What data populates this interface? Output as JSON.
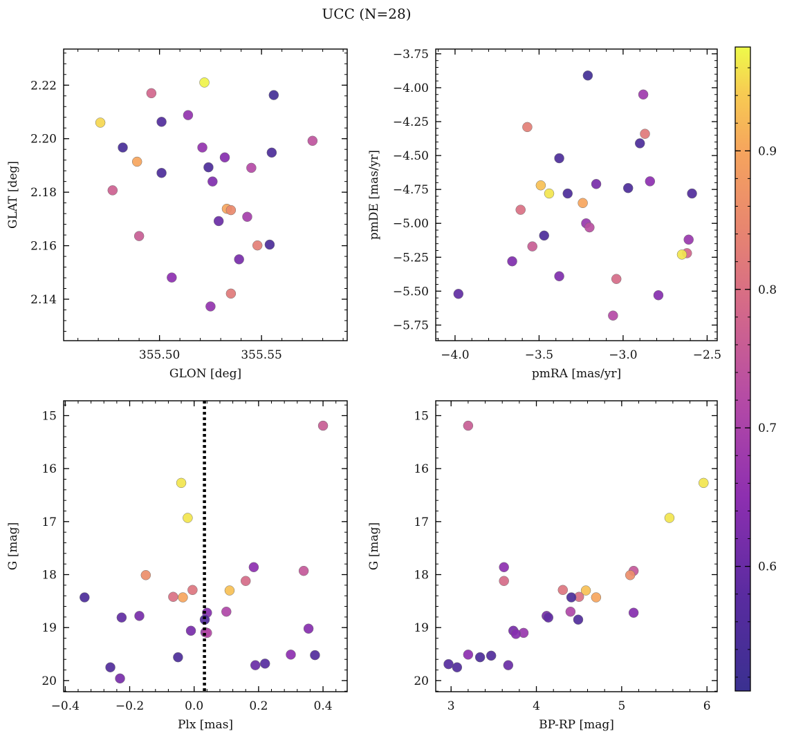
{
  "figure": {
    "title": "UCC (N=28)"
  },
  "colorbar": {
    "range": [
      0.51,
      0.975
    ],
    "ticks": [
      0.6,
      0.7,
      0.8,
      0.9
    ],
    "tick_labels": [
      "0.6",
      "0.7",
      "0.8",
      "0.9"
    ],
    "colormap": "plasma"
  },
  "chart_data": [
    {
      "type": "scatter",
      "name": "sky",
      "xlabel": "GLON [deg]",
      "ylabel": "GLAT [deg]",
      "xlim": [
        355.453,
        355.592
      ],
      "ylim": [
        2.1245,
        2.2335
      ],
      "xticks": [
        355.5,
        355.55
      ],
      "xtick_labels": [
        "355.50",
        "355.55"
      ],
      "yticks": [
        2.14,
        2.16,
        2.18,
        2.2,
        2.22
      ],
      "ytick_labels": [
        "2.14",
        "2.16",
        "2.18",
        "2.20",
        "2.22"
      ],
      "y_inverted": false,
      "points": [
        {
          "x": 355.556,
          "y": 2.2163,
          "c": 0.53
        },
        {
          "x": 355.522,
          "y": 2.221,
          "c": 0.97
        },
        {
          "x": 355.496,
          "y": 2.217,
          "c": 0.78
        },
        {
          "x": 355.471,
          "y": 2.206,
          "c": 0.95
        },
        {
          "x": 355.501,
          "y": 2.2063,
          "c": 0.56
        },
        {
          "x": 355.514,
          "y": 2.2088,
          "c": 0.66
        },
        {
          "x": 355.575,
          "y": 2.1992,
          "c": 0.74
        },
        {
          "x": 355.482,
          "y": 2.1967,
          "c": 0.54
        },
        {
          "x": 355.521,
          "y": 2.1967,
          "c": 0.66
        },
        {
          "x": 355.555,
          "y": 2.1948,
          "c": 0.55
        },
        {
          "x": 355.489,
          "y": 2.1914,
          "c": 0.9
        },
        {
          "x": 355.532,
          "y": 2.193,
          "c": 0.64
        },
        {
          "x": 355.524,
          "y": 2.1893,
          "c": 0.55
        },
        {
          "x": 355.545,
          "y": 2.1891,
          "c": 0.72
        },
        {
          "x": 355.501,
          "y": 2.1872,
          "c": 0.55
        },
        {
          "x": 355.526,
          "y": 2.184,
          "c": 0.63
        },
        {
          "x": 355.477,
          "y": 2.1807,
          "c": 0.77
        },
        {
          "x": 355.533,
          "y": 2.1738,
          "c": 0.9
        },
        {
          "x": 355.535,
          "y": 2.1733,
          "c": 0.85
        },
        {
          "x": 355.543,
          "y": 2.1708,
          "c": 0.69
        },
        {
          "x": 355.529,
          "y": 2.1692,
          "c": 0.6
        },
        {
          "x": 355.49,
          "y": 2.1636,
          "c": 0.76
        },
        {
          "x": 355.548,
          "y": 2.1601,
          "c": 0.83
        },
        {
          "x": 355.554,
          "y": 2.1604,
          "c": 0.55
        },
        {
          "x": 355.539,
          "y": 2.1549,
          "c": 0.62
        },
        {
          "x": 355.506,
          "y": 2.1481,
          "c": 0.65
        },
        {
          "x": 355.535,
          "y": 2.1421,
          "c": 0.82
        },
        {
          "x": 355.525,
          "y": 2.1373,
          "c": 0.66
        }
      ]
    },
    {
      "type": "scatter",
      "name": "proper-motion",
      "xlabel": "pmRA [mas/yr]",
      "ylabel": "pmDE [mas/yr]",
      "xlim": [
        -4.115,
        -2.44
      ],
      "ylim": [
        -5.865,
        -3.715
      ],
      "xticks": [
        -4.0,
        -3.5,
        -3.0,
        -2.5
      ],
      "xtick_labels": [
        "−4.0",
        "−3.5",
        "−3.0",
        "−2.5"
      ],
      "yticks": [
        -5.75,
        -5.5,
        -5.25,
        -5.0,
        -4.75,
        -4.5,
        -4.25,
        -4.0,
        -3.75
      ],
      "ytick_labels": [
        "−5.75",
        "−5.50",
        "−5.25",
        "−5.00",
        "−4.75",
        "−4.50",
        "−4.25",
        "−4.00",
        "−3.75"
      ],
      "y_inverted": false,
      "points": [
        {
          "x": -3.21,
          "y": -3.91,
          "c": 0.53
        },
        {
          "x": -2.88,
          "y": -4.05,
          "c": 0.68
        },
        {
          "x": -3.57,
          "y": -4.29,
          "c": 0.83
        },
        {
          "x": -2.87,
          "y": -4.34,
          "c": 0.82
        },
        {
          "x": -2.9,
          "y": -4.41,
          "c": 0.55
        },
        {
          "x": -3.38,
          "y": -4.52,
          "c": 0.55
        },
        {
          "x": -3.16,
          "y": -4.71,
          "c": 0.62
        },
        {
          "x": -2.84,
          "y": -4.69,
          "c": 0.65
        },
        {
          "x": -3.49,
          "y": -4.72,
          "c": 0.93
        },
        {
          "x": -3.44,
          "y": -4.78,
          "c": 0.96
        },
        {
          "x": -3.33,
          "y": -4.78,
          "c": 0.55
        },
        {
          "x": -2.97,
          "y": -4.74,
          "c": 0.55
        },
        {
          "x": -2.59,
          "y": -4.78,
          "c": 0.56
        },
        {
          "x": -3.24,
          "y": -4.85,
          "c": 0.9
        },
        {
          "x": -3.61,
          "y": -4.9,
          "c": 0.8
        },
        {
          "x": -3.22,
          "y": -5.0,
          "c": 0.67
        },
        {
          "x": -3.2,
          "y": -5.03,
          "c": 0.73
        },
        {
          "x": -3.47,
          "y": -5.09,
          "c": 0.55
        },
        {
          "x": -3.54,
          "y": -5.17,
          "c": 0.76
        },
        {
          "x": -2.61,
          "y": -5.12,
          "c": 0.67
        },
        {
          "x": -2.62,
          "y": -5.22,
          "c": 0.78
        },
        {
          "x": -2.65,
          "y": -5.23,
          "c": 0.96
        },
        {
          "x": -3.66,
          "y": -5.28,
          "c": 0.63
        },
        {
          "x": -3.38,
          "y": -5.39,
          "c": 0.63
        },
        {
          "x": -3.04,
          "y": -5.41,
          "c": 0.79
        },
        {
          "x": -3.98,
          "y": -5.52,
          "c": 0.59
        },
        {
          "x": -2.79,
          "y": -5.53,
          "c": 0.64
        },
        {
          "x": -3.06,
          "y": -5.68,
          "c": 0.72
        }
      ]
    },
    {
      "type": "scatter",
      "name": "plx-mag",
      "xlabel": "Plx [mas]",
      "ylabel": "G [mag]",
      "xlim": [
        -0.405,
        0.475
      ],
      "ylim": [
        14.72,
        20.21
      ],
      "xticks": [
        -0.4,
        -0.2,
        0.0,
        0.2,
        0.4
      ],
      "xtick_labels": [
        "−0.4",
        "−0.2",
        "0.0",
        "0.2",
        "0.4"
      ],
      "yticks": [
        15,
        16,
        17,
        18,
        19,
        20
      ],
      "ytick_labels": [
        "15",
        "16",
        "17",
        "18",
        "19",
        "20"
      ],
      "y_inverted": true,
      "vline": {
        "x": 0.032,
        "style": "dotted"
      },
      "points": [
        {
          "x": 0.4,
          "y": 15.19,
          "c": 0.76
        },
        {
          "x": -0.04,
          "y": 16.27,
          "c": 0.96
        },
        {
          "x": -0.02,
          "y": 16.93,
          "c": 0.96
        },
        {
          "x": 0.185,
          "y": 17.86,
          "c": 0.65
        },
        {
          "x": 0.34,
          "y": 17.93,
          "c": 0.75
        },
        {
          "x": -0.15,
          "y": 18.01,
          "c": 0.86
        },
        {
          "x": 0.16,
          "y": 18.12,
          "c": 0.79
        },
        {
          "x": -0.005,
          "y": 18.29,
          "c": 0.81
        },
        {
          "x": 0.11,
          "y": 18.3,
          "c": 0.93
        },
        {
          "x": -0.065,
          "y": 18.42,
          "c": 0.8
        },
        {
          "x": -0.035,
          "y": 18.43,
          "c": 0.9
        },
        {
          "x": -0.34,
          "y": 18.43,
          "c": 0.55
        },
        {
          "x": 0.1,
          "y": 18.7,
          "c": 0.71
        },
        {
          "x": 0.04,
          "y": 18.72,
          "c": 0.64
        },
        {
          "x": -0.17,
          "y": 18.78,
          "c": 0.62
        },
        {
          "x": -0.225,
          "y": 18.81,
          "c": 0.59
        },
        {
          "x": 0.033,
          "y": 18.85,
          "c": 0.56
        },
        {
          "x": 0.355,
          "y": 19.02,
          "c": 0.64
        },
        {
          "x": -0.01,
          "y": 19.06,
          "c": 0.62
        },
        {
          "x": 0.035,
          "y": 19.09,
          "c": 0.67
        },
        {
          "x": 0.04,
          "y": 19.1,
          "c": 0.72
        },
        {
          "x": 0.3,
          "y": 19.51,
          "c": 0.65
        },
        {
          "x": 0.375,
          "y": 19.52,
          "c": 0.56
        },
        {
          "x": -0.05,
          "y": 19.56,
          "c": 0.55
        },
        {
          "x": 0.22,
          "y": 19.68,
          "c": 0.57
        },
        {
          "x": 0.19,
          "y": 19.71,
          "c": 0.6
        },
        {
          "x": -0.26,
          "y": 19.75,
          "c": 0.56
        },
        {
          "x": -0.23,
          "y": 19.96,
          "c": 0.62
        }
      ]
    },
    {
      "type": "scatter",
      "name": "cmd",
      "xlabel": "BP-RP [mag]",
      "ylabel": "G [mag]",
      "xlim": [
        2.82,
        6.12
      ],
      "ylim": [
        14.72,
        20.21
      ],
      "xticks": [
        3,
        4,
        5,
        6
      ],
      "xtick_labels": [
        "3",
        "4",
        "5",
        "6"
      ],
      "yticks": [
        15,
        16,
        17,
        18,
        19,
        20
      ],
      "ytick_labels": [
        "15",
        "16",
        "17",
        "18",
        "19",
        "20"
      ],
      "y_inverted": true,
      "points": [
        {
          "x": 3.2,
          "y": 15.19,
          "c": 0.76
        },
        {
          "x": 5.96,
          "y": 16.27,
          "c": 0.96
        },
        {
          "x": 5.56,
          "y": 16.93,
          "c": 0.96
        },
        {
          "x": 3.62,
          "y": 17.86,
          "c": 0.65
        },
        {
          "x": 5.14,
          "y": 17.93,
          "c": 0.75
        },
        {
          "x": 5.1,
          "y": 18.01,
          "c": 0.86
        },
        {
          "x": 3.62,
          "y": 18.12,
          "c": 0.79
        },
        {
          "x": 4.31,
          "y": 18.29,
          "c": 0.81
        },
        {
          "x": 4.58,
          "y": 18.3,
          "c": 0.93
        },
        {
          "x": 4.5,
          "y": 18.42,
          "c": 0.8
        },
        {
          "x": 4.7,
          "y": 18.43,
          "c": 0.9
        },
        {
          "x": 4.41,
          "y": 18.43,
          "c": 0.55
        },
        {
          "x": 4.4,
          "y": 18.7,
          "c": 0.71
        },
        {
          "x": 5.14,
          "y": 18.72,
          "c": 0.64
        },
        {
          "x": 4.12,
          "y": 18.78,
          "c": 0.62
        },
        {
          "x": 4.14,
          "y": 18.81,
          "c": 0.59
        },
        {
          "x": 4.49,
          "y": 18.85,
          "c": 0.56
        },
        {
          "x": 3.73,
          "y": 19.06,
          "c": 0.62
        },
        {
          "x": 3.85,
          "y": 19.1,
          "c": 0.67
        },
        {
          "x": 3.76,
          "y": 19.12,
          "c": 0.64
        },
        {
          "x": 3.2,
          "y": 19.51,
          "c": 0.65
        },
        {
          "x": 3.47,
          "y": 19.53,
          "c": 0.56
        },
        {
          "x": 3.34,
          "y": 19.56,
          "c": 0.55
        },
        {
          "x": 2.97,
          "y": 19.69,
          "c": 0.57
        },
        {
          "x": 3.67,
          "y": 19.71,
          "c": 0.6
        },
        {
          "x": 3.07,
          "y": 19.75,
          "c": 0.56
        }
      ]
    }
  ]
}
